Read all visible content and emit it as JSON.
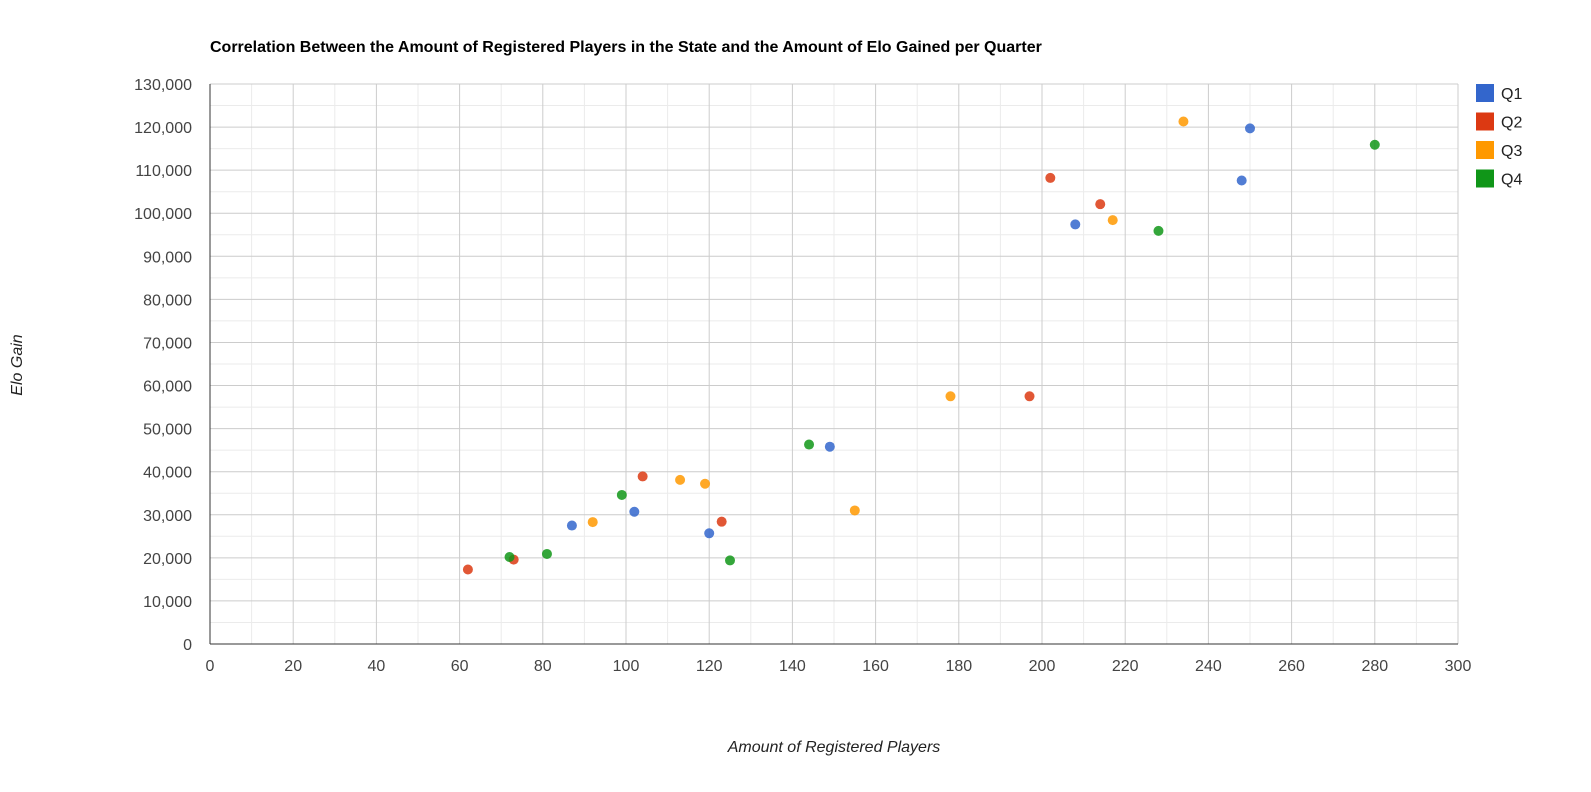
{
  "chart_data": {
    "type": "scatter",
    "title": "Correlation Between the Amount of Registered Players in the State and the Amount of Elo Gained per Quarter",
    "xlabel": "Amount of Registered Players",
    "ylabel": "Elo Gain",
    "xlim": [
      0,
      300
    ],
    "ylim": [
      0,
      130000
    ],
    "x_ticks": [
      0,
      20,
      40,
      60,
      80,
      100,
      120,
      140,
      160,
      180,
      200,
      220,
      240,
      260,
      280,
      300
    ],
    "x_tick_labels": [
      "0",
      "20",
      "40",
      "60",
      "80",
      "100",
      "120",
      "140",
      "160",
      "180",
      "200",
      "220",
      "240",
      "260",
      "280",
      "300"
    ],
    "y_ticks": [
      0,
      10000,
      20000,
      30000,
      40000,
      50000,
      60000,
      70000,
      80000,
      90000,
      100000,
      110000,
      120000,
      130000
    ],
    "y_tick_labels": [
      "0",
      "10,000",
      "20,000",
      "30,000",
      "40,000",
      "50,000",
      "60,000",
      "70,000",
      "80,000",
      "90,000",
      "100,000",
      "110,000",
      "120,000",
      "130,000"
    ],
    "grid": true,
    "legend_position": "right",
    "series": [
      {
        "name": "Q1",
        "color": "#3366cc",
        "points": [
          [
            87,
            27500
          ],
          [
            102,
            30700
          ],
          [
            120,
            25700
          ],
          [
            149,
            45800
          ],
          [
            208,
            97400
          ],
          [
            248,
            107600
          ],
          [
            250,
            119700
          ]
        ]
      },
      {
        "name": "Q2",
        "color": "#dc3912",
        "points": [
          [
            62,
            17300
          ],
          [
            73,
            19600
          ],
          [
            104,
            38900
          ],
          [
            123,
            28400
          ],
          [
            197,
            57500
          ],
          [
            202,
            108200
          ],
          [
            214,
            102100
          ]
        ]
      },
      {
        "name": "Q3",
        "color": "#ff9900",
        "points": [
          [
            92,
            28300
          ],
          [
            113,
            38100
          ],
          [
            119,
            37200
          ],
          [
            155,
            31000
          ],
          [
            178,
            57500
          ],
          [
            217,
            98400
          ],
          [
            234,
            121300
          ]
        ]
      },
      {
        "name": "Q4",
        "color": "#109618",
        "points": [
          [
            72,
            20200
          ],
          [
            81,
            20900
          ],
          [
            99,
            34600
          ],
          [
            125,
            19400
          ],
          [
            144,
            46300
          ],
          [
            228,
            95900
          ],
          [
            280,
            115900
          ]
        ]
      }
    ]
  }
}
